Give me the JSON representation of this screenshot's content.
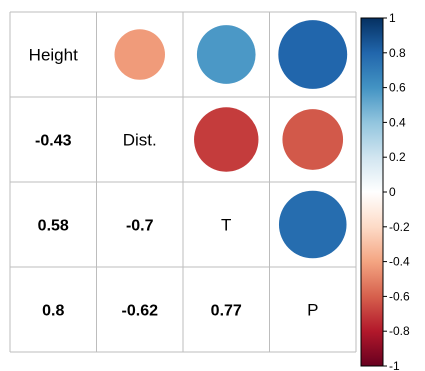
{
  "chart_data": {
    "type": "heatmap",
    "title": "",
    "variables": [
      "Height",
      "Dist.",
      "T",
      "P"
    ],
    "matrix": [
      [
        1,
        -0.43,
        0.58,
        0.8
      ],
      [
        -0.43,
        1,
        -0.7,
        -0.62
      ],
      [
        0.58,
        -0.7,
        1,
        0.77
      ],
      [
        0.8,
        -0.62,
        0.77,
        1
      ]
    ],
    "upper_method": "circle",
    "lower_method": "number",
    "diagonal": "variable names",
    "lower_labels": [
      {
        "row": 1,
        "col": 0,
        "text": "-0.43"
      },
      {
        "row": 2,
        "col": 0,
        "text": "0.58"
      },
      {
        "row": 2,
        "col": 1,
        "text": "-0.7"
      },
      {
        "row": 3,
        "col": 0,
        "text": "0.8"
      },
      {
        "row": 3,
        "col": 1,
        "text": "-0.62"
      },
      {
        "row": 3,
        "col": 2,
        "text": "0.77"
      }
    ],
    "colorbar": {
      "range": [
        -1,
        1
      ],
      "ticks": [
        "1",
        "0.8",
        "0.6",
        "0.4",
        "0.2",
        "0",
        "-0.2",
        "-0.4",
        "-0.6",
        "-0.8",
        "-1"
      ],
      "palette": [
        "#67001F",
        "#B2182B",
        "#D6604D",
        "#F4A582",
        "#FDDBC7",
        "#FFFFFF",
        "#D1E5F0",
        "#92C5DE",
        "#4393C3",
        "#2166AC",
        "#053061"
      ]
    },
    "grid": true
  }
}
